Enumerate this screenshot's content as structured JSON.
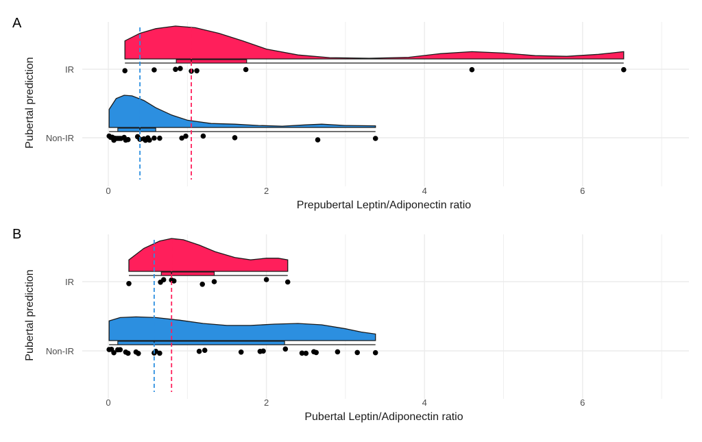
{
  "colors": {
    "IR": "#FF1F5B",
    "Non-IR": "#2C8FE0",
    "grid": "#EBEBEB",
    "text": "#4D4D4D"
  },
  "chart_data": [
    {
      "panel": "A",
      "type": "raincloud",
      "xlabel": "Prepubertal Leptin/Adiponectin ratio",
      "ylabel": "Pubertal prediction",
      "categories": [
        "IR",
        "Non-IR"
      ],
      "xticks": [
        0,
        2,
        4,
        6
      ],
      "xlim": [
        -0.2,
        7.4
      ],
      "grid": true,
      "medians": {
        "IR": 1.05,
        "Non-IR": 0.4
      },
      "groups": [
        {
          "name": "IR",
          "points": [
            0.21,
            0.58,
            0.85,
            0.91,
            1.05,
            1.12,
            1.74,
            4.6,
            6.52
          ],
          "box": {
            "q1": 0.86,
            "median": 1.05,
            "q3": 1.75
          },
          "density": [
            [
              0.21,
              0.55
            ],
            [
              0.4,
              0.78
            ],
            [
              0.6,
              0.92
            ],
            [
              0.85,
              1.0
            ],
            [
              1.1,
              0.95
            ],
            [
              1.4,
              0.78
            ],
            [
              1.7,
              0.55
            ],
            [
              2.0,
              0.3
            ],
            [
              2.4,
              0.12
            ],
            [
              2.8,
              0.04
            ],
            [
              3.3,
              0.02
            ],
            [
              3.8,
              0.05
            ],
            [
              4.2,
              0.16
            ],
            [
              4.6,
              0.22
            ],
            [
              5.0,
              0.18
            ],
            [
              5.4,
              0.1
            ],
            [
              5.8,
              0.08
            ],
            [
              6.2,
              0.14
            ],
            [
              6.52,
              0.22
            ]
          ]
        },
        {
          "name": "Non-IR",
          "points": [
            0.01,
            0.03,
            0.05,
            0.07,
            0.08,
            0.1,
            0.12,
            0.14,
            0.16,
            0.2,
            0.22,
            0.25,
            0.37,
            0.4,
            0.45,
            0.47,
            0.5,
            0.52,
            0.58,
            0.65,
            0.93,
            0.98,
            1.2,
            1.6,
            2.65,
            3.38
          ],
          "box": {
            "q1": 0.12,
            "median": 0.4,
            "q3": 0.6
          },
          "density": [
            [
              0.01,
              0.55
            ],
            [
              0.1,
              0.88
            ],
            [
              0.2,
              0.98
            ],
            [
              0.3,
              0.96
            ],
            [
              0.45,
              0.82
            ],
            [
              0.6,
              0.6
            ],
            [
              0.8,
              0.38
            ],
            [
              1.0,
              0.22
            ],
            [
              1.3,
              0.12
            ],
            [
              1.6,
              0.1
            ],
            [
              1.9,
              0.06
            ],
            [
              2.2,
              0.04
            ],
            [
              2.5,
              0.08
            ],
            [
              2.7,
              0.1
            ],
            [
              3.0,
              0.06
            ],
            [
              3.38,
              0.05
            ]
          ]
        }
      ]
    },
    {
      "panel": "B",
      "type": "raincloud",
      "xlabel": "Pubertal Leptin/Adiponectin ratio",
      "ylabel": "Pubertal prediction",
      "categories": [
        "IR",
        "Non-IR"
      ],
      "xticks": [
        0,
        2,
        4,
        6
      ],
      "xlim": [
        -0.2,
        7.4
      ],
      "grid": true,
      "medians": {
        "IR": 0.8,
        "Non-IR": 0.58
      },
      "groups": [
        {
          "name": "IR",
          "points": [
            0.26,
            0.66,
            0.7,
            0.8,
            0.83,
            1.19,
            1.34,
            2.0,
            2.27
          ],
          "box": {
            "q1": 0.67,
            "median": 0.8,
            "q3": 1.34
          },
          "density": [
            [
              0.26,
              0.35
            ],
            [
              0.45,
              0.7
            ],
            [
              0.65,
              0.92
            ],
            [
              0.8,
              1.0
            ],
            [
              0.95,
              0.96
            ],
            [
              1.15,
              0.8
            ],
            [
              1.35,
              0.6
            ],
            [
              1.6,
              0.42
            ],
            [
              1.8,
              0.35
            ],
            [
              2.0,
              0.4
            ],
            [
              2.15,
              0.4
            ],
            [
              2.27,
              0.35
            ]
          ]
        },
        {
          "name": "Non-IR",
          "points": [
            0.01,
            0.04,
            0.07,
            0.12,
            0.15,
            0.22,
            0.25,
            0.35,
            0.38,
            0.58,
            0.6,
            0.65,
            1.15,
            1.22,
            1.68,
            1.92,
            1.96,
            2.24,
            2.45,
            2.5,
            2.6,
            2.63,
            2.9,
            3.15,
            3.38
          ],
          "box": {
            "q1": 0.12,
            "median": 0.58,
            "q3": 2.23
          },
          "density": [
            [
              0.01,
              0.6
            ],
            [
              0.15,
              0.7
            ],
            [
              0.35,
              0.72
            ],
            [
              0.6,
              0.7
            ],
            [
              0.9,
              0.62
            ],
            [
              1.2,
              0.52
            ],
            [
              1.5,
              0.46
            ],
            [
              1.8,
              0.46
            ],
            [
              2.1,
              0.5
            ],
            [
              2.4,
              0.52
            ],
            [
              2.7,
              0.48
            ],
            [
              3.0,
              0.36
            ],
            [
              3.2,
              0.26
            ],
            [
              3.38,
              0.2
            ]
          ]
        }
      ]
    }
  ]
}
